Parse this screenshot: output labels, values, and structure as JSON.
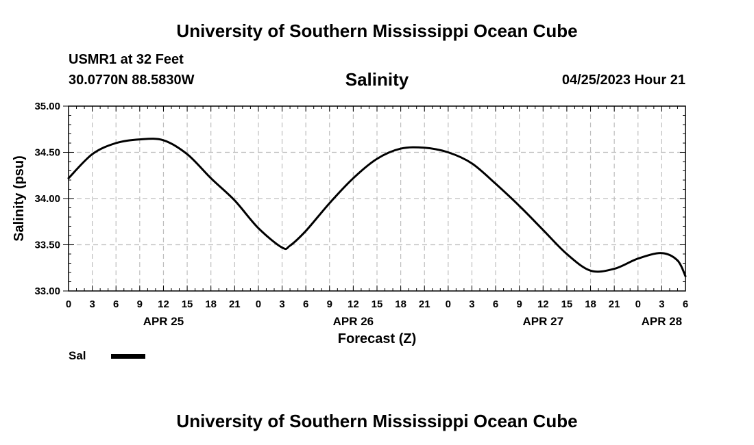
{
  "header": {
    "title_top": "University of Southern Mississippi Ocean Cube",
    "station": "USMR1 at 32 Feet",
    "coords": "30.0770N  88.5830W",
    "date_label": "04/25/2023 Hour 21",
    "title_bottom": "University of Southern Mississippi Ocean Cube"
  },
  "chart_data": {
    "type": "line",
    "title": "Salinity",
    "xlabel": "Forecast (Z)",
    "ylabel": "Salinity (psu)",
    "xlim": [
      0,
      78
    ],
    "ylim": [
      33.0,
      35.0
    ],
    "x_ticks": [
      0,
      3,
      6,
      9,
      12,
      15,
      18,
      21,
      24,
      27,
      30,
      33,
      36,
      39,
      42,
      45,
      48,
      51,
      54,
      57,
      60,
      63,
      66,
      69,
      72,
      75,
      78
    ],
    "x_tick_labels": [
      "0",
      "3",
      "6",
      "9",
      "12",
      "15",
      "18",
      "21",
      "0",
      "3",
      "6",
      "9",
      "12",
      "15",
      "18",
      "21",
      "0",
      "3",
      "6",
      "9",
      "12",
      "15",
      "18",
      "21",
      "0",
      "3",
      "6"
    ],
    "y_ticks": [
      33.0,
      33.5,
      34.0,
      34.5,
      35.0
    ],
    "y_tick_labels": [
      "33.00",
      "33.50",
      "34.00",
      "34.50",
      "35.00"
    ],
    "date_labels": [
      {
        "x": 12,
        "label": "APR 25"
      },
      {
        "x": 36,
        "label": "APR 26"
      },
      {
        "x": 60,
        "label": "APR 27"
      },
      {
        "x": 75,
        "label": "APR 28"
      }
    ],
    "grid": true,
    "legend": [
      {
        "name": "Sal"
      }
    ],
    "series": [
      {
        "name": "Sal",
        "x": [
          0,
          3,
          6,
          9,
          12,
          15,
          18,
          21,
          24,
          27,
          28,
          30,
          33,
          36,
          39,
          42,
          45,
          48,
          51,
          54,
          57,
          60,
          63,
          66,
          69,
          72,
          75,
          77,
          78
        ],
        "y": [
          34.22,
          34.48,
          34.6,
          34.64,
          34.63,
          34.48,
          34.22,
          33.98,
          33.68,
          33.47,
          33.49,
          33.65,
          33.95,
          34.22,
          34.43,
          34.54,
          34.55,
          34.5,
          34.38,
          34.16,
          33.92,
          33.66,
          33.4,
          33.22,
          33.24,
          33.35,
          33.41,
          33.33,
          33.16
        ]
      }
    ]
  }
}
